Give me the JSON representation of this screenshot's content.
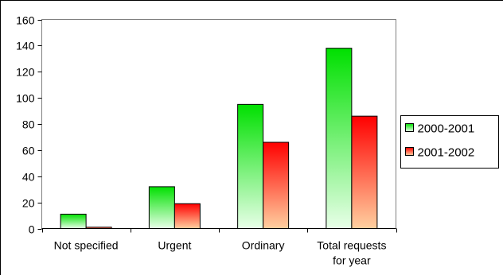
{
  "chart_data": {
    "type": "bar",
    "title": "",
    "xlabel": "",
    "ylabel": "",
    "categories": [
      "Not specified",
      "Urgent",
      "Ordinary",
      "Total requests for year"
    ],
    "category_label_lines": [
      [
        "Not specified"
      ],
      [
        "Urgent"
      ],
      [
        "Ordinary"
      ],
      [
        "Total requests",
        "for year"
      ]
    ],
    "series": [
      {
        "name": "2000-2001",
        "values": [
          11,
          32,
          95,
          138
        ],
        "gradient_top": "#00e000",
        "gradient_bottom": "#e8ffe8"
      },
      {
        "name": "2001-2002",
        "values": [
          1,
          19,
          66,
          86
        ],
        "gradient_top": "#ff0000",
        "gradient_bottom": "#ffd0a0"
      }
    ],
    "ylim": [
      0,
      160
    ],
    "yticks": [
      0,
      20,
      40,
      60,
      80,
      100,
      120,
      140,
      160
    ],
    "grid": false,
    "legend_position": "right"
  }
}
